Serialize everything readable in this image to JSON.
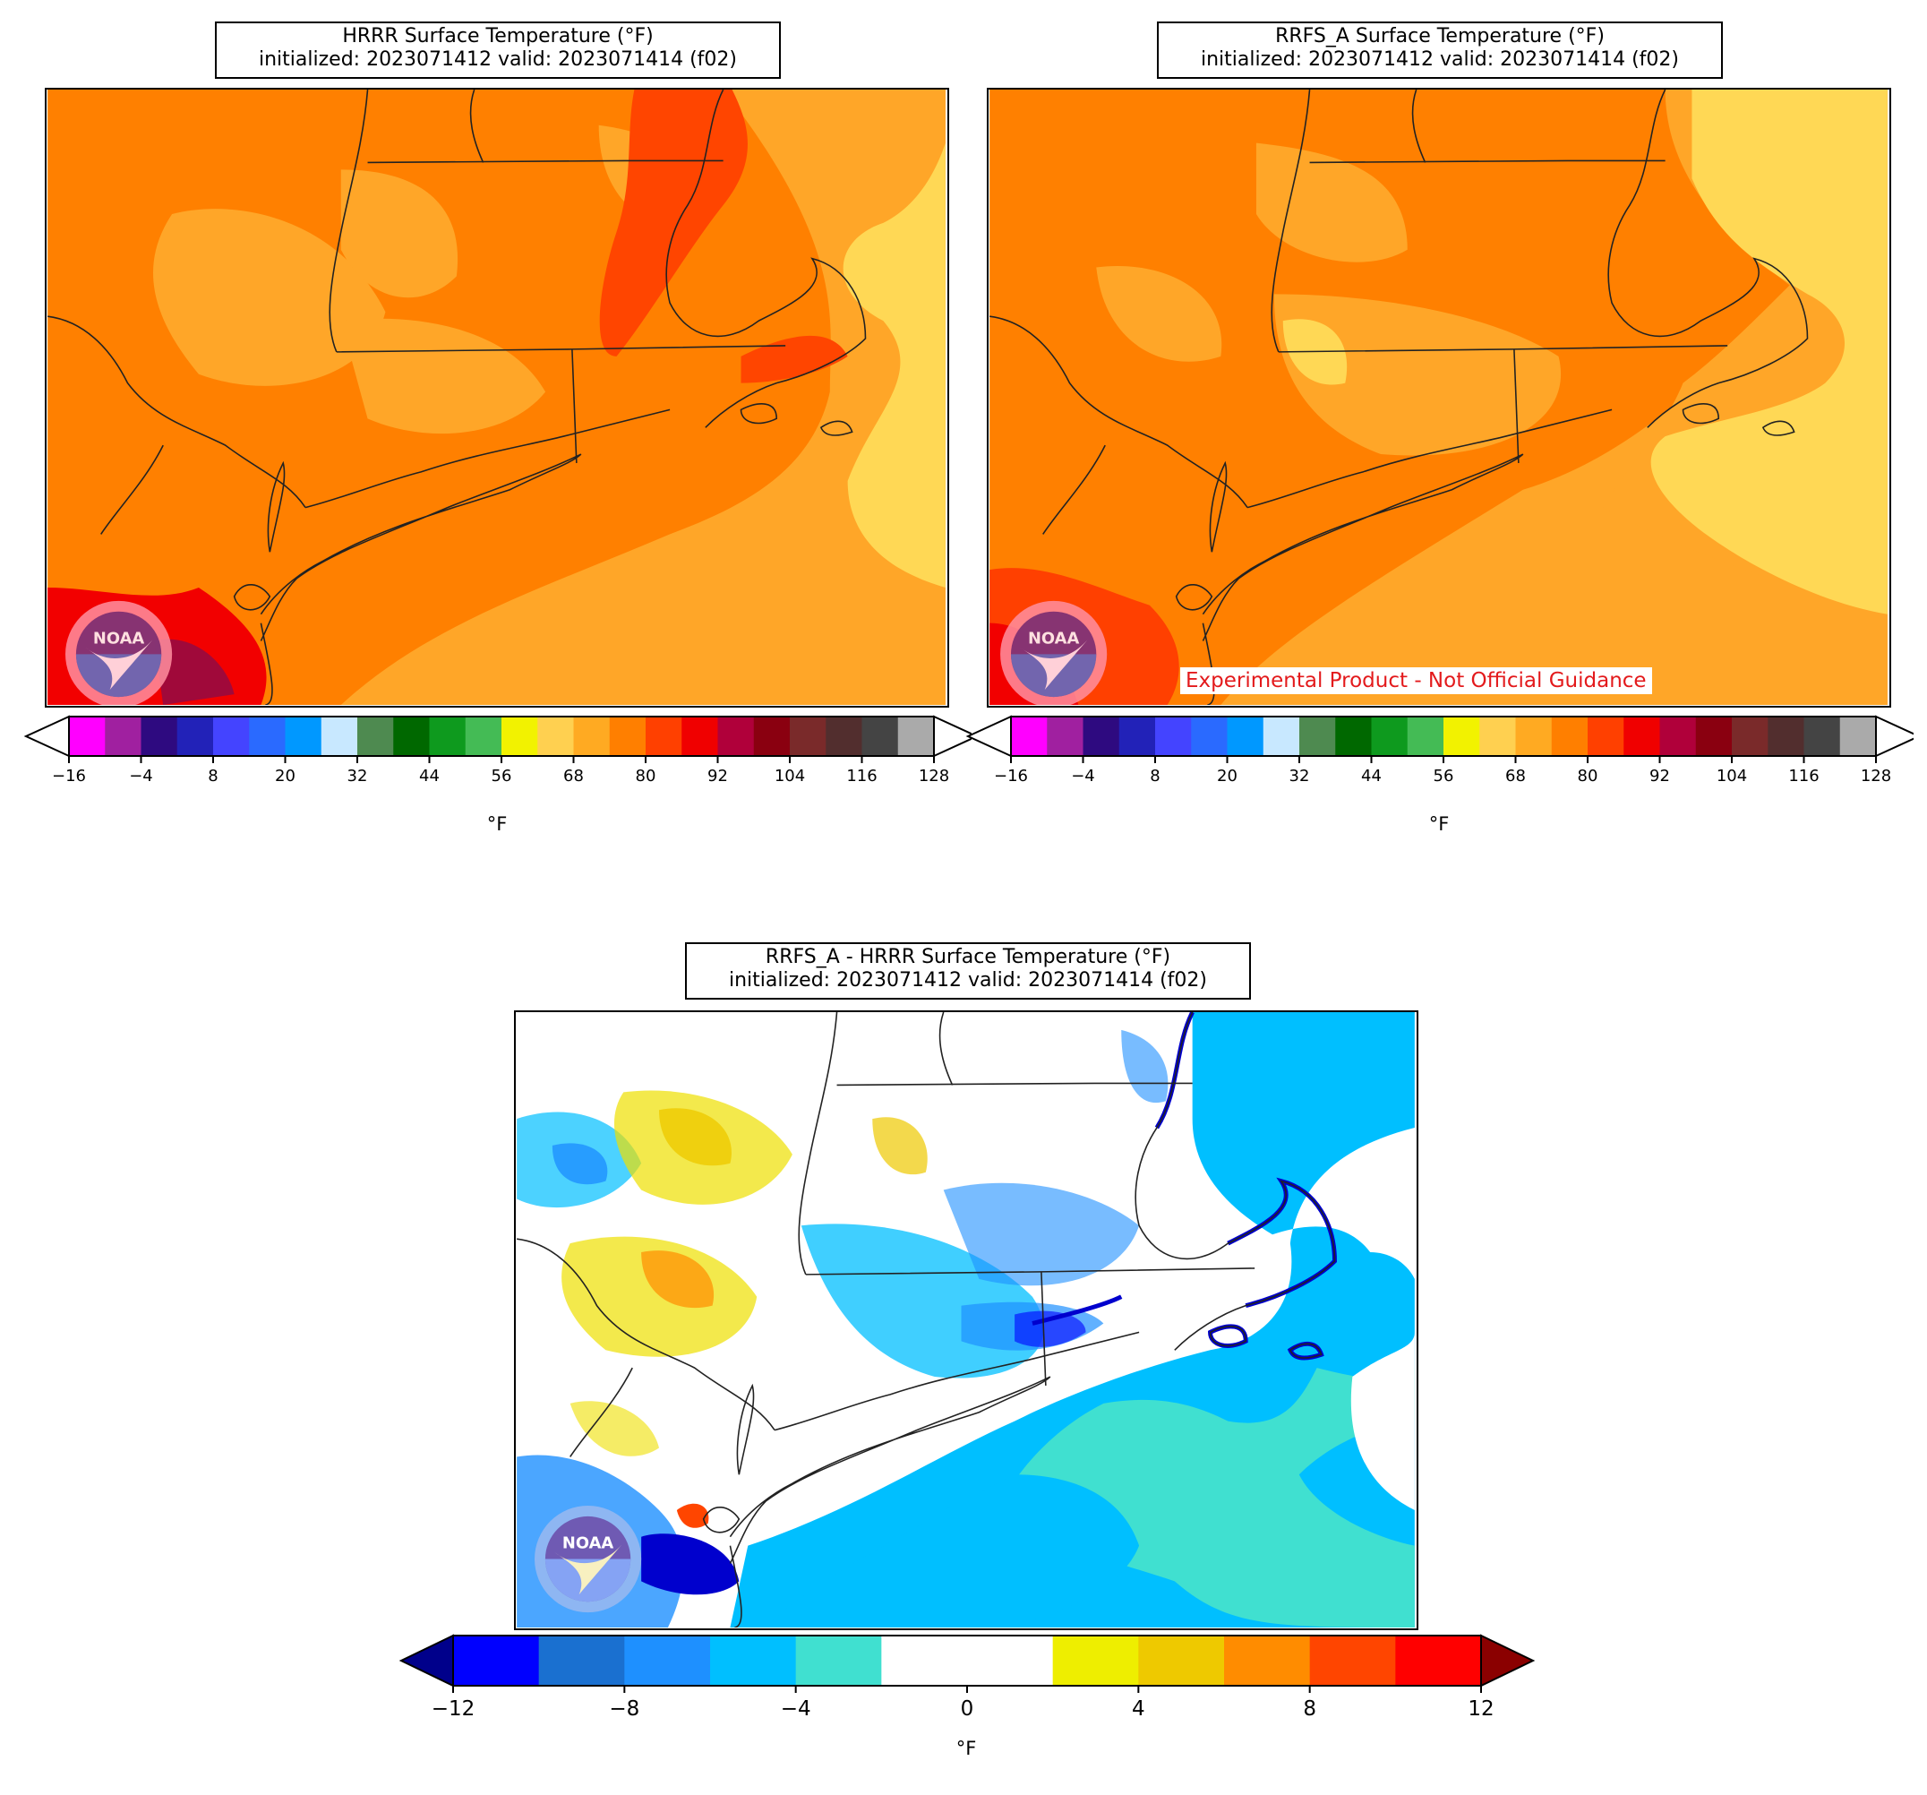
{
  "panels": [
    {
      "id": "hrrr",
      "title_line1": "HRRR Surface Temperature (°F)",
      "title_line2": "initialized: 2023071412 valid: 2023071414 (f02)"
    },
    {
      "id": "rrfs",
      "title_line1": "RRFS_A Surface Temperature (°F)",
      "title_line2": "initialized: 2023071412 valid: 2023071414 (f02)",
      "disclaimer": "Experimental Product - Not Official Guidance",
      "disclaimer_color": "#e31a1c"
    },
    {
      "id": "diff",
      "title_line1": "RRFS_A - HRRR Surface Temperature (°F)",
      "title_line2": "initialized: 2023071412 valid: 2023071414 (f02)"
    }
  ],
  "logo_text": "NOAA",
  "temp_colorbar": {
    "unit": "°F",
    "ticks": [
      "−16",
      "−4",
      "8",
      "20",
      "32",
      "44",
      "56",
      "68",
      "80",
      "92",
      "104",
      "116",
      "128"
    ],
    "colors": [
      "#ff00ff",
      "#a020a0",
      "#2e0a80",
      "#2222b8",
      "#4444ff",
      "#2a6aff",
      "#0098ff",
      "#c8e8ff",
      "#4e8a50",
      "#006800",
      "#0e9a1e",
      "#44bb55",
      "#f2f200",
      "#ffd050",
      "#ffaa22",
      "#ff7f00",
      "#ff4000",
      "#f00000",
      "#b0003a",
      "#8a0010",
      "#7a2a2a",
      "#522e2e",
      "#444444",
      "#aaaaaa"
    ],
    "under_color": "#ffffff",
    "over_color": "#ffffff"
  },
  "diff_colorbar": {
    "unit": "°F",
    "ticks": [
      "−12",
      "−8",
      "−4",
      "0",
      "4",
      "8",
      "12"
    ],
    "colors": [
      "#0000ff",
      "#1a70d0",
      "#1e90ff",
      "#00bfff",
      "#40e0d0",
      "#ffffff",
      "#ffffff",
      "#eeee00",
      "#eec900",
      "#ff8c00",
      "#ff4500",
      "#ff0000"
    ],
    "under_color": "#00008b",
    "over_color": "#8b0000"
  }
}
